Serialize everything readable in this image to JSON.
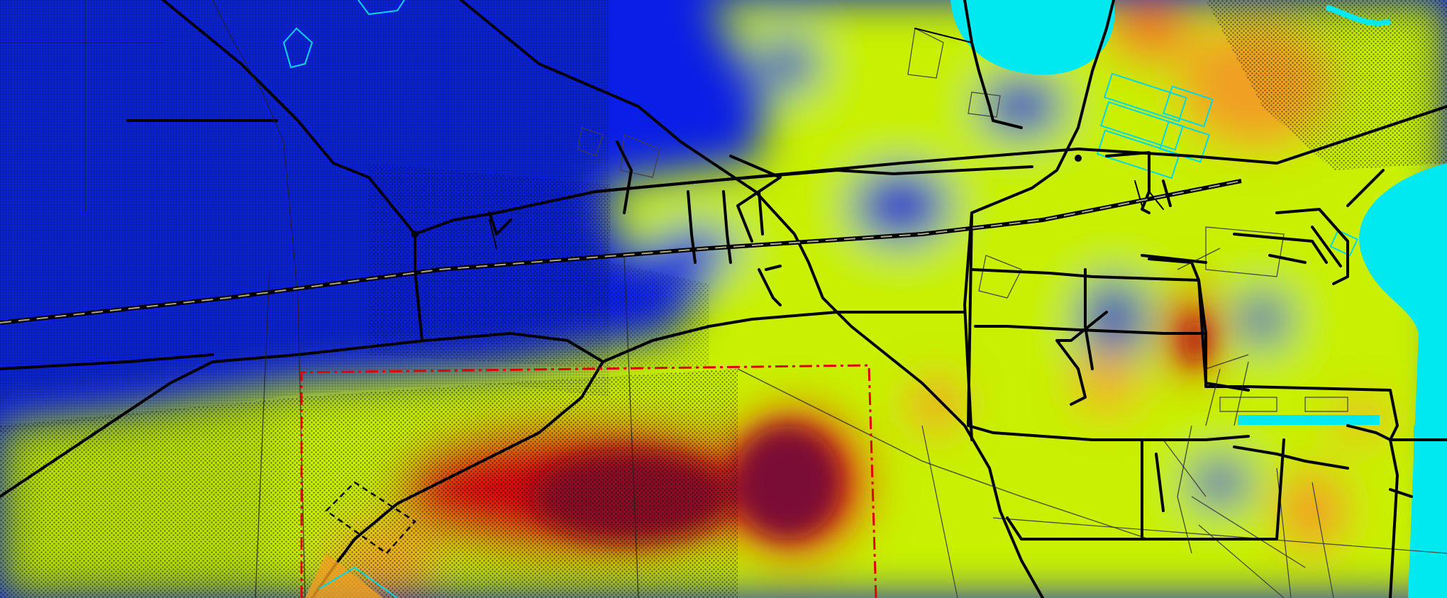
{
  "map": {
    "kind": "heatmap-overlay",
    "colors": {
      "low": "#0a1ee6",
      "mid_low": "#2a3cc8",
      "mid": "#c8f000",
      "mid_high": "#f0b020",
      "high": "#dc1010",
      "max": "#7a0a35",
      "water": "#00e8f0",
      "road": "#000000",
      "railway_dash": "#b0a888",
      "boundary": "#e00000",
      "building_outline": "#404040"
    },
    "layers": [
      "heat-surface",
      "hatched-areas",
      "water-bodies",
      "roads",
      "railway",
      "study-boundary",
      "parcel-outlines"
    ]
  }
}
